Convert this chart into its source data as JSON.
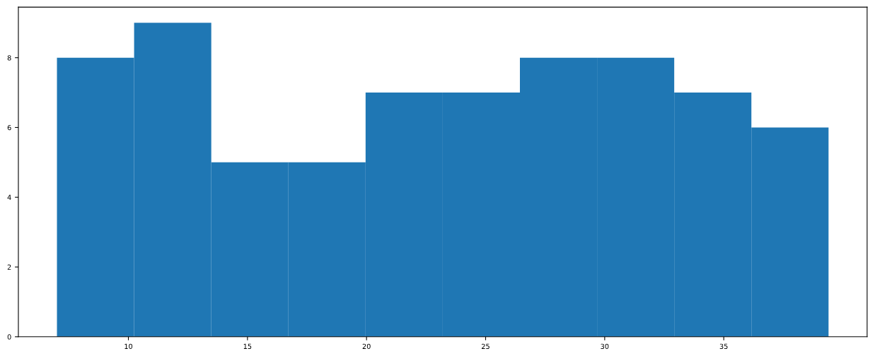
{
  "chart_data": {
    "type": "histogram",
    "bins": [
      7,
      10.24,
      13.48,
      16.72,
      19.96,
      23.2,
      26.44,
      29.68,
      32.92,
      36.16,
      39.4
    ],
    "values": [
      8,
      9,
      5,
      5,
      7,
      7,
      8,
      8,
      7,
      6
    ],
    "color": "#1f77b4",
    "xlim": [
      5.38,
      41.02
    ],
    "xticks": [
      10,
      15,
      20,
      25,
      30,
      35
    ],
    "ylim": [
      0,
      9.45
    ],
    "yticks": [
      0,
      2,
      4,
      6,
      8
    ],
    "grid": false
  }
}
